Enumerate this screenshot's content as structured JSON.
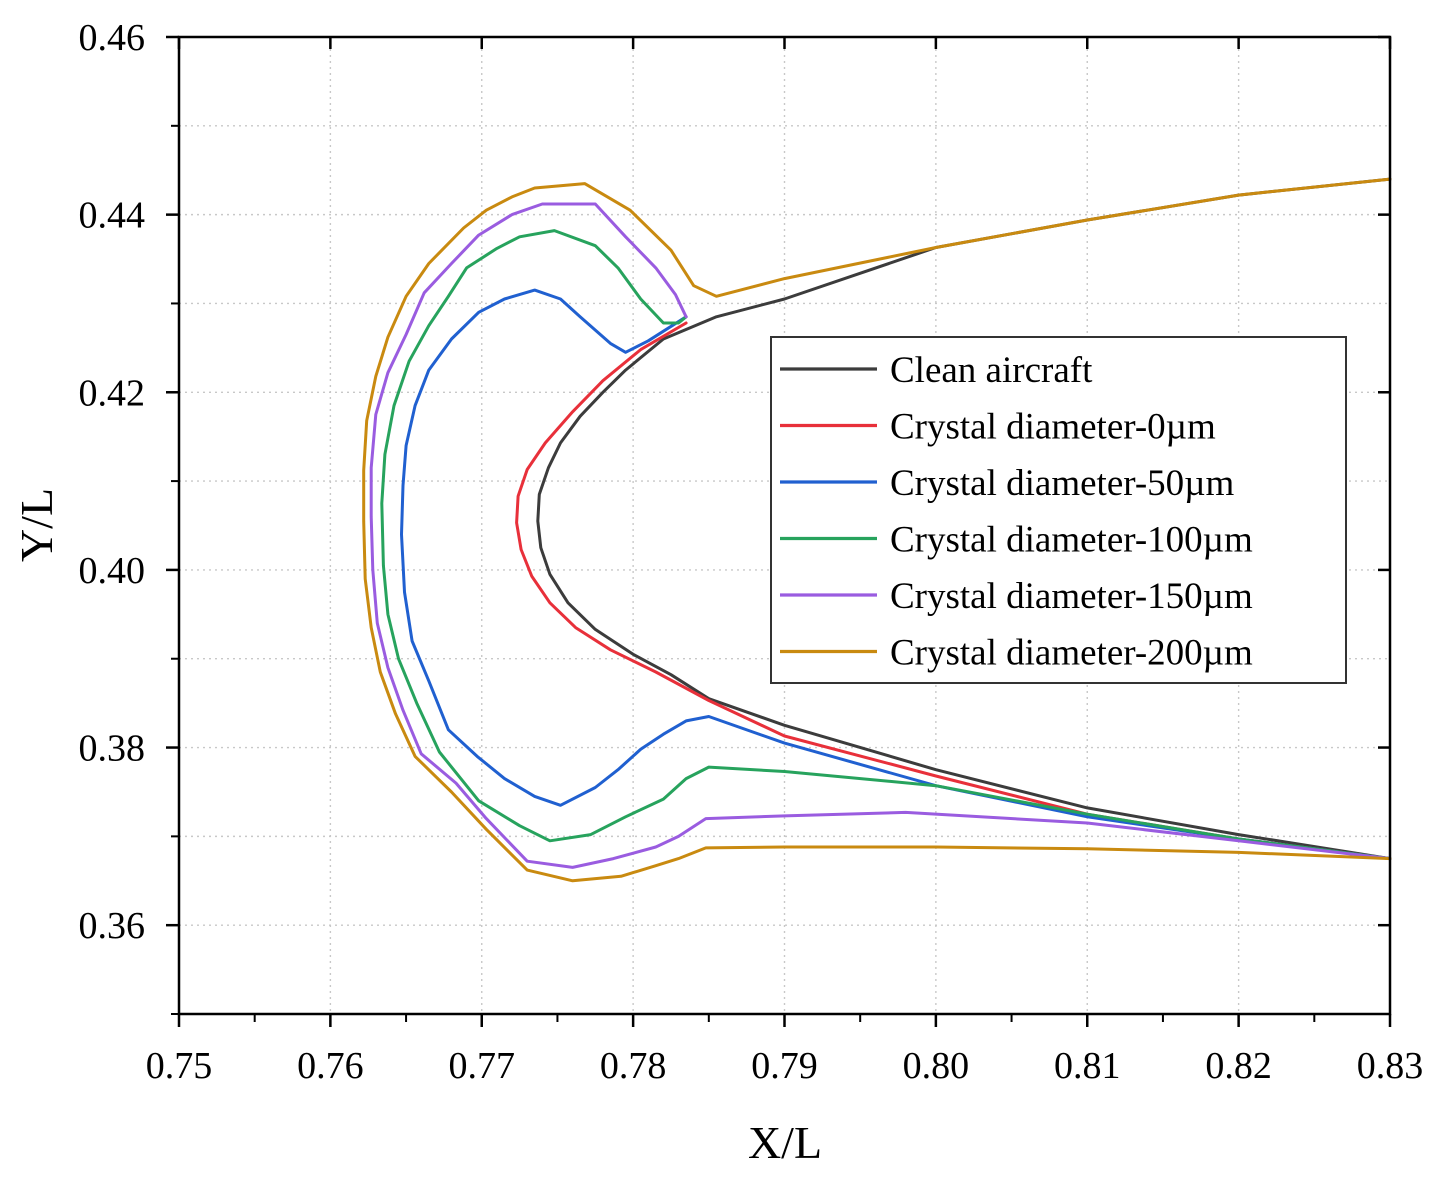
{
  "chart_data": {
    "type": "line",
    "title": "",
    "xlabel": "X/L",
    "ylabel": "Y/L",
    "xlim": [
      0.75,
      0.83
    ],
    "ylim": [
      0.35,
      0.46
    ],
    "x_ticks": [
      "0.75",
      "0.76",
      "0.77",
      "0.78",
      "0.79",
      "0.80",
      "0.81",
      "0.82",
      "0.83"
    ],
    "y_ticks": [
      "0.36",
      "0.38",
      "0.40",
      "0.42",
      "0.44",
      "0.46"
    ],
    "grid": true,
    "legend_position": "center-right",
    "series": [
      {
        "name": "Clean aircraft",
        "color": "#3c3c3c",
        "points": [
          [
            0.83,
            0.444
          ],
          [
            0.82,
            0.4422
          ],
          [
            0.81,
            0.4394
          ],
          [
            0.8,
            0.4363
          ],
          [
            0.79,
            0.4305
          ],
          [
            0.7855,
            0.4285
          ],
          [
            0.782,
            0.426
          ],
          [
            0.7795,
            0.4225
          ],
          [
            0.778,
            0.42
          ],
          [
            0.7765,
            0.4173
          ],
          [
            0.7752,
            0.4143
          ],
          [
            0.7744,
            0.4115
          ],
          [
            0.7738,
            0.4085
          ],
          [
            0.7737,
            0.4055
          ],
          [
            0.7739,
            0.4025
          ],
          [
            0.7745,
            0.3995
          ],
          [
            0.7757,
            0.3963
          ],
          [
            0.7775,
            0.3933
          ],
          [
            0.78,
            0.3905
          ],
          [
            0.7825,
            0.3882
          ],
          [
            0.785,
            0.3855
          ],
          [
            0.79,
            0.3825
          ],
          [
            0.8,
            0.3775
          ],
          [
            0.81,
            0.3732
          ],
          [
            0.82,
            0.3702
          ],
          [
            0.83,
            0.3675
          ]
        ]
      },
      {
        "name": "Crystal diameter-0µm",
        "color": "#e8303a",
        "points": [
          [
            0.7835,
            0.4278
          ],
          [
            0.7805,
            0.4248
          ],
          [
            0.778,
            0.4213
          ],
          [
            0.776,
            0.4178
          ],
          [
            0.7742,
            0.4143
          ],
          [
            0.773,
            0.4113
          ],
          [
            0.7724,
            0.4083
          ],
          [
            0.7723,
            0.4053
          ],
          [
            0.7726,
            0.4023
          ],
          [
            0.7733,
            0.3993
          ],
          [
            0.7745,
            0.3963
          ],
          [
            0.7762,
            0.3935
          ],
          [
            0.7785,
            0.391
          ],
          [
            0.7815,
            0.3885
          ],
          [
            0.785,
            0.3853
          ],
          [
            0.79,
            0.3813
          ],
          [
            0.8,
            0.3768
          ],
          [
            0.81,
            0.3725
          ],
          [
            0.82,
            0.3697
          ],
          [
            0.83,
            0.3675
          ]
        ]
      },
      {
        "name": "Crystal diameter-50µm",
        "color": "#2060d0",
        "points": [
          [
            0.7835,
            0.4285
          ],
          [
            0.781,
            0.4258
          ],
          [
            0.7795,
            0.4245
          ],
          [
            0.7785,
            0.4255
          ],
          [
            0.7765,
            0.4285
          ],
          [
            0.7752,
            0.4305
          ],
          [
            0.7735,
            0.4315
          ],
          [
            0.7715,
            0.4305
          ],
          [
            0.7698,
            0.429
          ],
          [
            0.768,
            0.426
          ],
          [
            0.7665,
            0.4225
          ],
          [
            0.7656,
            0.4185
          ],
          [
            0.765,
            0.414
          ],
          [
            0.7648,
            0.4095
          ],
          [
            0.7647,
            0.404
          ],
          [
            0.7649,
            0.3975
          ],
          [
            0.7654,
            0.392
          ],
          [
            0.7665,
            0.3875
          ],
          [
            0.7678,
            0.382
          ],
          [
            0.7697,
            0.379
          ],
          [
            0.7715,
            0.3765
          ],
          [
            0.7735,
            0.3745
          ],
          [
            0.7752,
            0.3735
          ],
          [
            0.7775,
            0.3755
          ],
          [
            0.779,
            0.3775
          ],
          [
            0.7805,
            0.3798
          ],
          [
            0.782,
            0.3815
          ],
          [
            0.7835,
            0.383
          ],
          [
            0.785,
            0.3835
          ],
          [
            0.79,
            0.3805
          ],
          [
            0.8,
            0.3757
          ],
          [
            0.81,
            0.3722
          ],
          [
            0.82,
            0.3697
          ],
          [
            0.83,
            0.3675
          ]
        ]
      },
      {
        "name": "Crystal diameter-100µm",
        "color": "#27a35d",
        "points": [
          [
            0.7835,
            0.4285
          ],
          [
            0.783,
            0.4278
          ],
          [
            0.782,
            0.4278
          ],
          [
            0.7805,
            0.4305
          ],
          [
            0.779,
            0.434
          ],
          [
            0.7775,
            0.4365
          ],
          [
            0.7748,
            0.4382
          ],
          [
            0.7725,
            0.4375
          ],
          [
            0.771,
            0.4362
          ],
          [
            0.769,
            0.434
          ],
          [
            0.7678,
            0.4308
          ],
          [
            0.7665,
            0.4275
          ],
          [
            0.7652,
            0.4235
          ],
          [
            0.7642,
            0.4185
          ],
          [
            0.7636,
            0.413
          ],
          [
            0.7634,
            0.4075
          ],
          [
            0.7635,
            0.4005
          ],
          [
            0.7638,
            0.395
          ],
          [
            0.7645,
            0.39
          ],
          [
            0.7657,
            0.385
          ],
          [
            0.7672,
            0.3795
          ],
          [
            0.7698,
            0.374
          ],
          [
            0.7725,
            0.3712
          ],
          [
            0.7745,
            0.3695
          ],
          [
            0.7772,
            0.3702
          ],
          [
            0.7795,
            0.3722
          ],
          [
            0.782,
            0.3742
          ],
          [
            0.7835,
            0.3765
          ],
          [
            0.785,
            0.3778
          ],
          [
            0.79,
            0.3773
          ],
          [
            0.8,
            0.3757
          ],
          [
            0.81,
            0.3725
          ],
          [
            0.82,
            0.3697
          ],
          [
            0.83,
            0.3675
          ]
        ]
      },
      {
        "name": "Crystal diameter-150µm",
        "color": "#9a5ce0",
        "points": [
          [
            0.7835,
            0.4285
          ],
          [
            0.7828,
            0.431
          ],
          [
            0.7815,
            0.434
          ],
          [
            0.7795,
            0.4375
          ],
          [
            0.7775,
            0.4412
          ],
          [
            0.774,
            0.4412
          ],
          [
            0.772,
            0.44
          ],
          [
            0.7698,
            0.4377
          ],
          [
            0.768,
            0.4345
          ],
          [
            0.7662,
            0.4312
          ],
          [
            0.765,
            0.4265
          ],
          [
            0.7638,
            0.4222
          ],
          [
            0.763,
            0.4175
          ],
          [
            0.7627,
            0.4115
          ],
          [
            0.7627,
            0.406
          ],
          [
            0.7628,
            0.4
          ],
          [
            0.7631,
            0.394
          ],
          [
            0.7638,
            0.389
          ],
          [
            0.7648,
            0.3842
          ],
          [
            0.766,
            0.3793
          ],
          [
            0.7683,
            0.376
          ],
          [
            0.7703,
            0.372
          ],
          [
            0.773,
            0.3672
          ],
          [
            0.776,
            0.3665
          ],
          [
            0.7787,
            0.3675
          ],
          [
            0.7815,
            0.3688
          ],
          [
            0.783,
            0.37
          ],
          [
            0.7848,
            0.372
          ],
          [
            0.79,
            0.3723
          ],
          [
            0.798,
            0.3727
          ],
          [
            0.81,
            0.3715
          ],
          [
            0.82,
            0.3695
          ],
          [
            0.83,
            0.3675
          ]
        ]
      },
      {
        "name": "Crystal diameter-200µm",
        "color": "#c98a10",
        "points": [
          [
            0.83,
            0.444
          ],
          [
            0.82,
            0.4422
          ],
          [
            0.81,
            0.4394
          ],
          [
            0.8,
            0.4363
          ],
          [
            0.79,
            0.4328
          ],
          [
            0.7855,
            0.4308
          ],
          [
            0.784,
            0.432
          ],
          [
            0.7825,
            0.436
          ],
          [
            0.7798,
            0.4405
          ],
          [
            0.7768,
            0.4435
          ],
          [
            0.7735,
            0.443
          ],
          [
            0.772,
            0.442
          ],
          [
            0.7703,
            0.4405
          ],
          [
            0.7688,
            0.4385
          ],
          [
            0.7665,
            0.4345
          ],
          [
            0.765,
            0.4308
          ],
          [
            0.7638,
            0.4262
          ],
          [
            0.763,
            0.4218
          ],
          [
            0.7624,
            0.4168
          ],
          [
            0.7622,
            0.4112
          ],
          [
            0.7622,
            0.4055
          ],
          [
            0.7623,
            0.399
          ],
          [
            0.7627,
            0.3935
          ],
          [
            0.7633,
            0.3885
          ],
          [
            0.7643,
            0.3838
          ],
          [
            0.7656,
            0.379
          ],
          [
            0.768,
            0.375
          ],
          [
            0.7703,
            0.3708
          ],
          [
            0.773,
            0.3662
          ],
          [
            0.776,
            0.365
          ],
          [
            0.7792,
            0.3655
          ],
          [
            0.7815,
            0.3667
          ],
          [
            0.783,
            0.3675
          ],
          [
            0.7848,
            0.3687
          ],
          [
            0.79,
            0.3688
          ],
          [
            0.8,
            0.3688
          ],
          [
            0.81,
            0.3686
          ],
          [
            0.82,
            0.3682
          ],
          [
            0.83,
            0.3675
          ]
        ]
      }
    ]
  }
}
